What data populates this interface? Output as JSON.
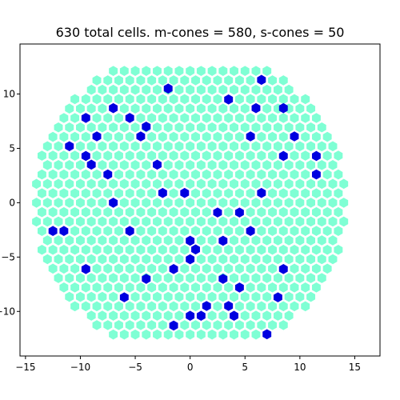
{
  "chart_data": {
    "type": "scatter",
    "title": "630 total cells. m-cones = 580, s-cones = 50",
    "xlabel": "",
    "ylabel": "",
    "xlim": [
      -15.5,
      17.3
    ],
    "ylim": [
      -14.1,
      14.6
    ],
    "x_ticks": [
      -15,
      -10,
      -5,
      0,
      5,
      10,
      15
    ],
    "y_ticks": [
      -10,
      -5,
      0,
      5,
      10
    ],
    "grid": false,
    "legend": "none",
    "lattice": {
      "pitch": 1.0,
      "row_spacing": 0.866,
      "center": [
        0,
        0
      ],
      "max_radius": 14.3,
      "row_limit": 14
    },
    "series": [
      {
        "marker": "hexagon",
        "color": "#7fffd4",
        "count": 580
      },
      {
        "marker": "hexagon",
        "color": "#0000e0",
        "count": 50,
        "points": [
          [
            6.5,
            11.3
          ],
          [
            -2.0,
            10.5
          ],
          [
            3.5,
            9.5
          ],
          [
            -7.0,
            8.7
          ],
          [
            6.0,
            8.7
          ],
          [
            8.5,
            8.7
          ],
          [
            -9.5,
            7.8
          ],
          [
            -5.5,
            7.8
          ],
          [
            -4.0,
            7.0
          ],
          [
            -8.5,
            6.1
          ],
          [
            -4.5,
            6.1
          ],
          [
            5.5,
            6.1
          ],
          [
            9.5,
            6.1
          ],
          [
            -11.0,
            5.2
          ],
          [
            -9.5,
            4.3
          ],
          [
            8.5,
            4.3
          ],
          [
            11.5,
            4.3
          ],
          [
            -9.0,
            3.5
          ],
          [
            -3.0,
            3.5
          ],
          [
            -7.5,
            2.6
          ],
          [
            11.5,
            2.6
          ],
          [
            -2.5,
            0.9
          ],
          [
            -0.5,
            0.9
          ],
          [
            6.5,
            0.9
          ],
          [
            -7.0,
            0.0
          ],
          [
            2.5,
            -0.9
          ],
          [
            4.5,
            -0.9
          ],
          [
            -12.5,
            -2.6
          ],
          [
            -11.5,
            -2.6
          ],
          [
            -5.5,
            -2.6
          ],
          [
            5.5,
            -2.6
          ],
          [
            0.0,
            -3.5
          ],
          [
            3.0,
            -3.5
          ],
          [
            0.5,
            -4.3
          ],
          [
            0.0,
            -5.2
          ],
          [
            -9.5,
            -6.1
          ],
          [
            -1.5,
            -6.1
          ],
          [
            8.5,
            -6.1
          ],
          [
            -4.0,
            -7.0
          ],
          [
            3.0,
            -7.0
          ],
          [
            4.5,
            -7.8
          ],
          [
            -6.0,
            -8.7
          ],
          [
            8.0,
            -8.7
          ],
          [
            1.5,
            -9.5
          ],
          [
            3.5,
            -9.5
          ],
          [
            0.0,
            -10.4
          ],
          [
            1.0,
            -10.4
          ],
          [
            4.0,
            -10.4
          ],
          [
            -1.5,
            -11.3
          ],
          [
            7.0,
            -12.1
          ]
        ]
      }
    ]
  }
}
